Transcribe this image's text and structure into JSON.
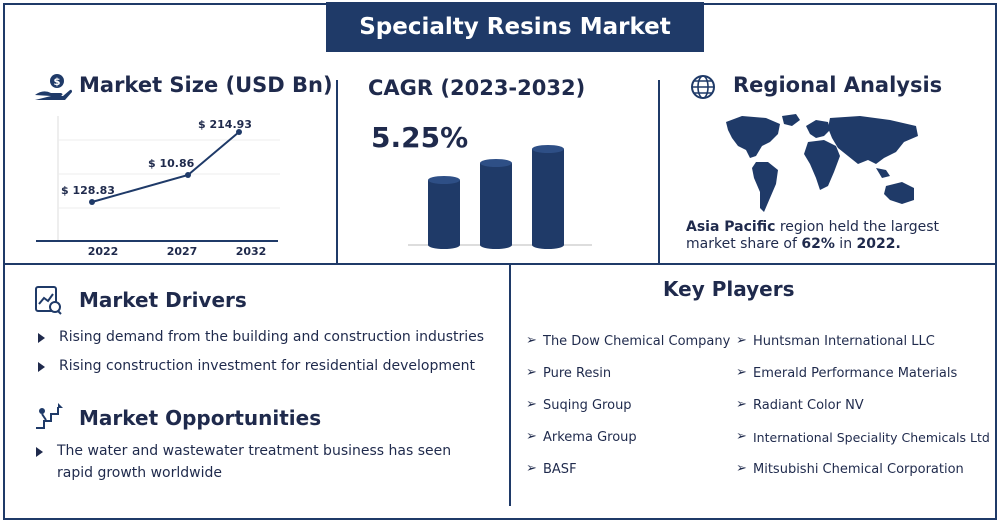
{
  "title": "Specialty Resins Market",
  "market_size": {
    "heading": "Market Size (USD Bn)",
    "icon": "money-hand-icon"
  },
  "chart_data": {
    "type": "line",
    "categories": [
      "2022",
      "2027",
      "2032"
    ],
    "values": [
      128.83,
      10.86,
      214.93
    ],
    "data_labels": [
      "$ 128.83",
      "$ 10.86",
      "$ 214.93"
    ],
    "title": "",
    "xlabel": "",
    "ylabel": "",
    "grid": true
  },
  "cagr": {
    "heading": "CAGR (2023-2032)",
    "value": "5.25%",
    "bar_levels": [
      0.55,
      0.72,
      0.85
    ],
    "bar_color": "#1f3a68"
  },
  "regional": {
    "heading": "Regional Analysis",
    "icon": "globe-icon",
    "region": "Asia Pacific",
    "line1_rest": " region held the largest",
    "line2_pre": "market share of ",
    "share": "62%",
    "line2_mid": " in ",
    "year": "2022.",
    "map_icon": "world-map-icon"
  },
  "drivers": {
    "heading": "Market Drivers",
    "icon": "analytics-icon",
    "items": [
      "Rising demand from the building and construction industries",
      "Rising construction investment for residential development"
    ]
  },
  "opportunities": {
    "heading": "Market Opportunities",
    "icon": "growth-stairs-icon",
    "line1": "The water and wastewater treatment business has seen",
    "line2": "rapid growth worldwide"
  },
  "key_players": {
    "heading": "Key Players",
    "left": [
      "The Dow Chemical Company",
      "Pure Resin",
      "Suqing Group",
      "Arkema Group",
      "BASF"
    ],
    "right": [
      "Huntsman International LLC",
      "Emerald Performance Materials",
      "Radiant Color NV",
      "International Speciality Chemicals Ltd",
      "Mitsubishi Chemical Corporation"
    ]
  },
  "colors": {
    "navy": "#1f3a68",
    "text": "#1f2a4c"
  }
}
